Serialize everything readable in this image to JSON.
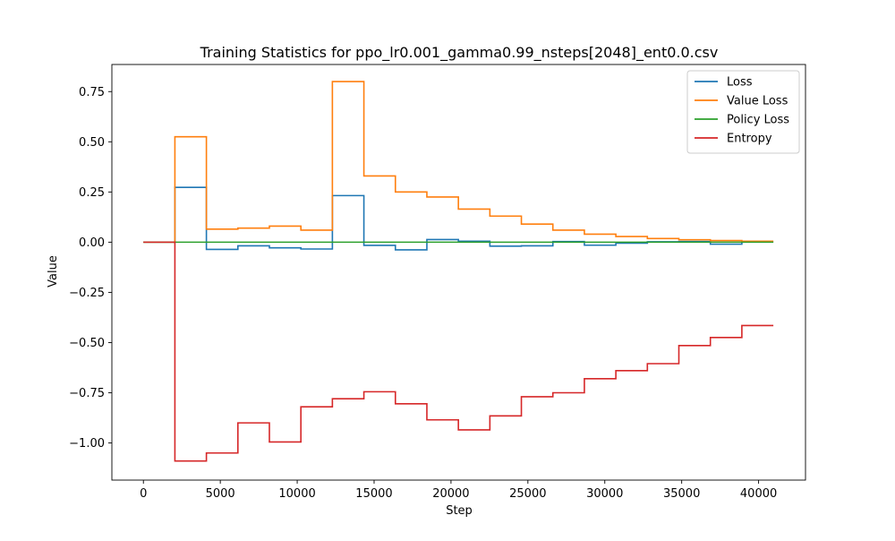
{
  "chart_data": {
    "type": "line",
    "title": "Training Statistics for ppo_lr0.001_gamma0.99_nsteps[2048]_ent0.0.csv",
    "xlabel": "Step",
    "ylabel": "Value",
    "xlim": [
      -2050,
      43050
    ],
    "ylim": [
      -1.185,
      0.885
    ],
    "xticks": [
      0,
      5000,
      10000,
      15000,
      20000,
      25000,
      30000,
      35000,
      40000
    ],
    "xtick_labels": [
      "0",
      "5000",
      "10000",
      "15000",
      "20000",
      "25000",
      "30000",
      "35000",
      "40000"
    ],
    "yticks": [
      -1.0,
      -0.75,
      -0.5,
      -0.25,
      0.0,
      0.25,
      0.5,
      0.75
    ],
    "ytick_labels": [
      "−1.00",
      "−0.75",
      "−0.50",
      "−0.25",
      "0.00",
      "0.25",
      "0.50",
      "0.75"
    ],
    "grid": false,
    "legend_position": "top-right",
    "x": [
      0,
      2048,
      4096,
      6144,
      8192,
      10240,
      12288,
      14336,
      16384,
      18432,
      20480,
      22528,
      24576,
      26624,
      28672,
      30720,
      32768,
      34816,
      36864,
      38912,
      40960
    ],
    "series": [
      {
        "name": "Loss",
        "color": "#1f77b4",
        "step": "post",
        "values": [
          0.0,
          0.273,
          -0.036,
          -0.018,
          -0.028,
          -0.034,
          0.232,
          -0.016,
          -0.038,
          0.013,
          0.005,
          -0.02,
          -0.018,
          0.003,
          -0.015,
          -0.005,
          0.002,
          0.003,
          -0.01,
          0.002,
          0.002
        ]
      },
      {
        "name": "Value Loss",
        "color": "#ff7f0e",
        "step": "post",
        "values": [
          0.0,
          0.525,
          0.065,
          0.07,
          0.08,
          0.06,
          0.8,
          0.33,
          0.25,
          0.225,
          0.165,
          0.13,
          0.09,
          0.06,
          0.04,
          0.028,
          0.018,
          0.012,
          0.008,
          0.005,
          0.005
        ]
      },
      {
        "name": "Policy Loss",
        "color": "#2ca02c",
        "step": "post",
        "values": [
          0.0,
          0.0,
          0.0,
          0.0,
          0.0,
          0.0,
          0.0,
          0.0,
          0.0,
          0.0,
          0.0,
          0.0,
          0.0,
          0.0,
          0.0,
          0.0,
          0.0,
          0.0,
          0.0,
          0.0,
          0.0
        ]
      },
      {
        "name": "Entropy",
        "color": "#d62728",
        "step": "post",
        "values": [
          0.0,
          -1.09,
          -1.05,
          -0.9,
          -0.995,
          -0.82,
          -0.78,
          -0.745,
          -0.805,
          -0.885,
          -0.935,
          -0.865,
          -0.77,
          -0.75,
          -0.68,
          -0.64,
          -0.605,
          -0.515,
          -0.475,
          -0.415,
          -0.415
        ]
      }
    ]
  }
}
